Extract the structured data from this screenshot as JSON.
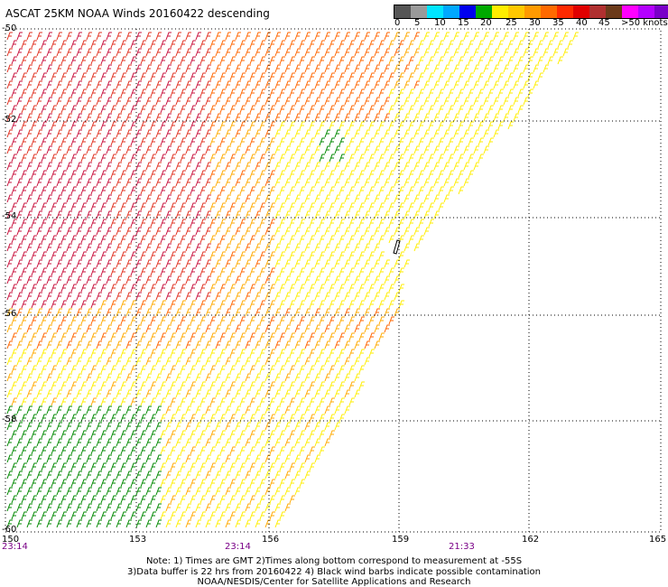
{
  "title": "ASCAT 25KM NOAA Winds 20160422 descending",
  "legend": {
    "ticks": [
      "0",
      "5",
      "10",
      "15",
      "20",
      "25",
      "30",
      "35",
      "40",
      "45",
      ">50 knots"
    ],
    "colors": [
      "#555555",
      "#9a9a9a",
      "#00e5ff",
      "#00a8ff",
      "#0000ee",
      "#00aa00",
      "#ffee00",
      "#ffc800",
      "#ff9a00",
      "#ff6a00",
      "#ff2a00",
      "#e00000",
      "#b03030",
      "#6b3a1a",
      "#ff00ff",
      "#b400ff",
      "#7a00c8",
      "#3c0080"
    ]
  },
  "latitude_labels": [
    "-50",
    "-52",
    "-54",
    "-56",
    "-58",
    "-60"
  ],
  "longitude_labels": [
    "150",
    "153",
    "156",
    "159",
    "162",
    "165"
  ],
  "time_labels": [
    "23:14",
    "23:14",
    "21:33"
  ],
  "notes": [
    "Note: 1) Times are GMT 2)Times along bottom correspond to measurement at -55S",
    "3)Data buffer is 22 hrs from 20160422 4) Black wind barbs indicate possible contamination",
    "NOAA/NESDIS/Center for Satellite Applications and Research"
  ],
  "wind_speed_colors": {
    "15-20": "#008800",
    "20-25": "#ffee00",
    "25-30": "#ffaa00",
    "30-35": "#ff6600",
    "35-40": "#e03020",
    "40-45": "#c8103c"
  }
}
